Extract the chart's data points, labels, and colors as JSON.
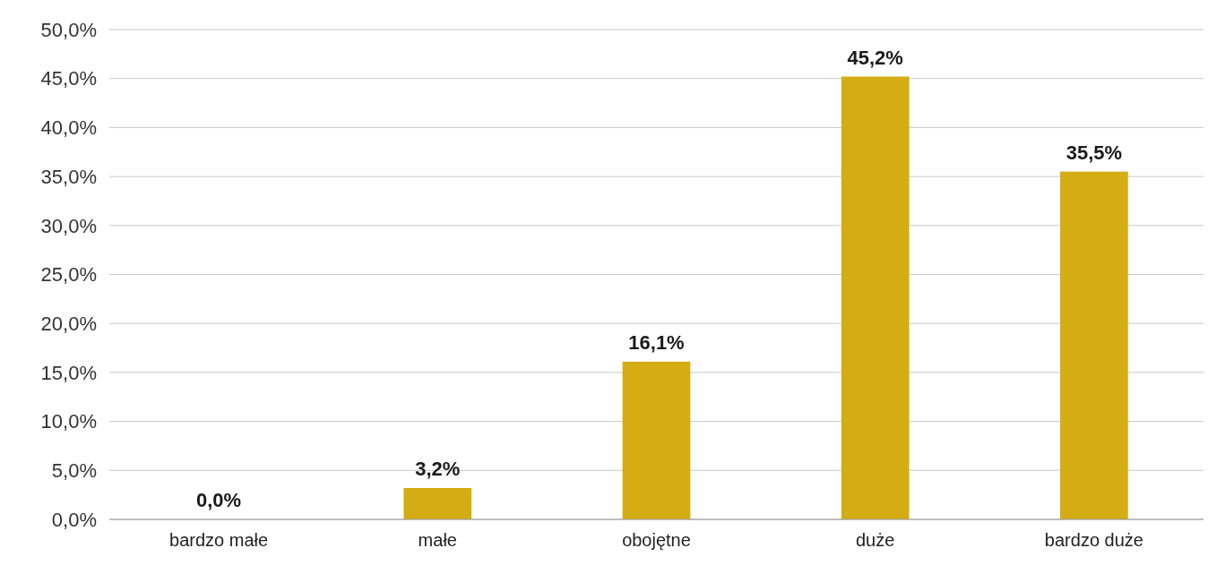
{
  "chart_data": {
    "type": "bar",
    "categories": [
      "bardzo małe",
      "małe",
      "obojętne",
      "duże",
      "bardzo duże"
    ],
    "values": [
      0.0,
      3.2,
      16.1,
      45.2,
      35.5
    ],
    "value_labels": [
      "0,0%",
      "3,2%",
      "16,1%",
      "45,2%",
      "35,5%"
    ],
    "color": "#d4ac14",
    "ylim": [
      0,
      50
    ],
    "yticks": [
      {
        "value": 0,
        "label": "0,0%"
      },
      {
        "value": 5,
        "label": "5,0%"
      },
      {
        "value": 10,
        "label": "10,0%"
      },
      {
        "value": 15,
        "label": "15,0%"
      },
      {
        "value": 20,
        "label": "20,0%"
      },
      {
        "value": 25,
        "label": "25,0%"
      },
      {
        "value": 30,
        "label": "30,0%"
      },
      {
        "value": 35,
        "label": "35,0%"
      },
      {
        "value": 40,
        "label": "40,0%"
      },
      {
        "value": 45,
        "label": "45,0%"
      },
      {
        "value": 50,
        "label": "50,0%"
      }
    ],
    "grid": "y"
  }
}
